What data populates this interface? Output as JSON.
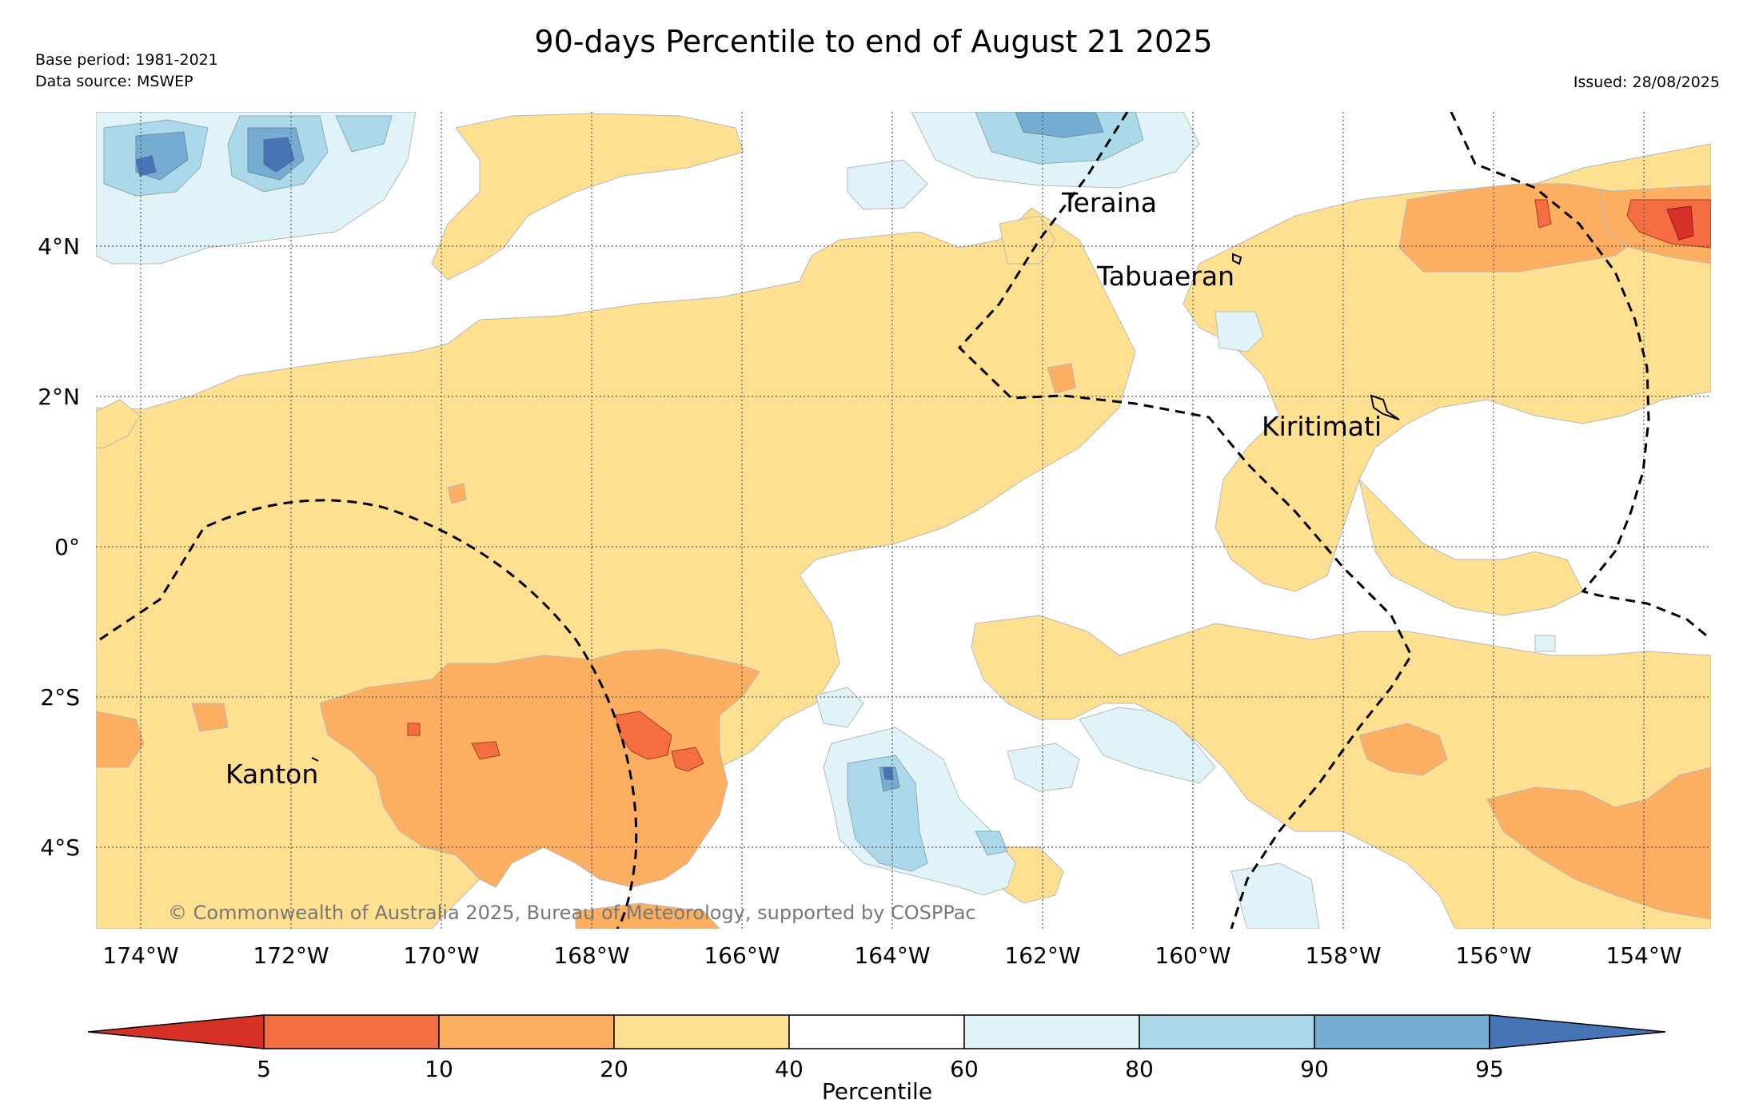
{
  "title": "90-days Percentile to end of August 21 2025",
  "meta": {
    "base_period": "Base period: 1981-2021",
    "data_source": "Data source: MSWEP",
    "issued": "Issued: 28/08/2025"
  },
  "map": {
    "lon_ticks": [
      "174°W",
      "172°W",
      "170°W",
      "168°W",
      "166°W",
      "164°W",
      "162°W",
      "160°W",
      "158°W",
      "156°W",
      "154°W"
    ],
    "lat_ticks": [
      "4°N",
      "2°N",
      "0°",
      "2°S",
      "4°S"
    ],
    "places": {
      "teraina": "Teraina",
      "tabuaeran": "Tabuaeran",
      "kiritimati": "Kiritimati",
      "kanton": "Kanton"
    },
    "copyright": "© Commonwealth of Australia 2025, Bureau of Meteorology, supported by COSPPac"
  },
  "colorbar": {
    "label": "Percentile",
    "ticks": [
      "5",
      "10",
      "20",
      "40",
      "60",
      "80",
      "90",
      "95"
    ],
    "colors": {
      "lt5": "#d73027",
      "5-10": "#f46d43",
      "10-20": "#fdae61",
      "20-40": "#fee090",
      "40-60": "#ffffff",
      "60-80": "#e0f3f8",
      "80-90": "#abd9e9",
      "90-95": "#74add1",
      "gt95": "#4575b4"
    }
  }
}
